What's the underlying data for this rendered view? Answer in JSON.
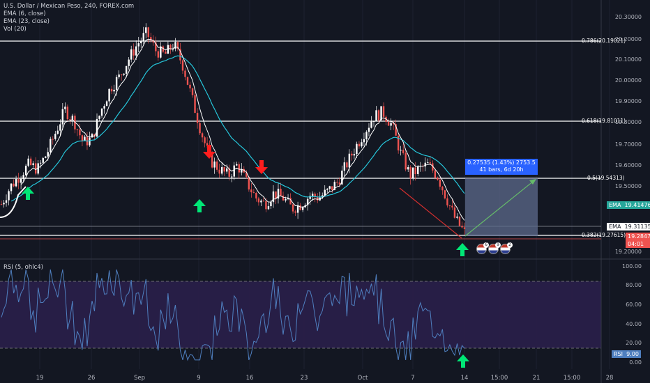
{
  "legend": {
    "title": "U.S. Dollar / Mexican Peso, 240, FOREX.com",
    "ema1": "EMA (6, close)",
    "ema2": "EMA (23, close)",
    "vol": "Vol (20)"
  },
  "rsi_legend": "RSI (5, ohlc4)",
  "fib_levels": {
    "f786": "0.786(20.19021)",
    "f618": "0.618(19.81011)",
    "f5": "0.5(19.54313)",
    "f382": "0.382(19.27615)"
  },
  "measure": {
    "line1": "0.27535 (1.43%) 2753.5",
    "line2": "41 bars, 6d 20h"
  },
  "price_axis": [
    "20.30000",
    "20.20000",
    "20.10000",
    "20.00000",
    "19.90000",
    "19.80000",
    "19.70000",
    "19.60000",
    "19.50000",
    "19.20000"
  ],
  "rsi_axis": [
    "100.00",
    "80.00",
    "60.00",
    "40.00",
    "20.00",
    "0.00"
  ],
  "time_axis": [
    "19",
    "26",
    "Sep",
    "9",
    "16",
    "23",
    "Oct",
    "7",
    "14",
    "15:00",
    "21",
    "15:00",
    "28"
  ],
  "tags": {
    "ema1_label": "EMA",
    "ema1_value": "19.41476",
    "ema2_label": "EMA",
    "ema2_value": "19.31135",
    "price_value": "19.28475",
    "countdown": "04:01",
    "rsi_label": "RSI",
    "rsi_value": "9.00"
  },
  "colors": {
    "background": "#131722",
    "up_candle": "#ffffff",
    "down_candle": "#ef5350",
    "ema_fast": "#ffffff",
    "ema_slow": "#26c6da",
    "rsi_line": "#4f7fbf",
    "rsi_band": "#2a1f4a",
    "arrow_up": "#00e676",
    "arrow_down": "#ff1e1e",
    "measure": "#2962ff"
  },
  "events": {
    "badge1": "6",
    "badge2": "9",
    "badge3": "2"
  },
  "chart_data": {
    "type": "candlestick",
    "title": "U.S. Dollar / Mexican Peso, 240, FOREX.com",
    "ylim": [
      19.17,
      20.35
    ],
    "close_path": [
      19.42,
      19.5,
      19.55,
      19.6,
      19.58,
      19.65,
      19.75,
      19.85,
      19.8,
      19.7,
      19.72,
      19.85,
      19.95,
      20.0,
      20.08,
      20.15,
      20.2,
      20.12,
      20.1,
      20.15,
      20.05,
      19.9,
      19.75,
      19.62,
      19.58,
      19.55,
      19.6,
      19.52,
      19.45,
      19.42,
      19.47,
      19.45,
      19.4,
      19.42,
      19.46,
      19.45,
      19.48,
      19.52,
      19.6,
      19.68,
      19.75,
      19.82,
      19.84,
      19.78,
      19.65,
      19.55,
      19.58,
      19.6,
      19.55,
      19.45,
      19.35,
      19.29
    ],
    "rsi_ylim": [
      0,
      100
    ],
    "rsi_bands": [
      85,
      15
    ]
  }
}
